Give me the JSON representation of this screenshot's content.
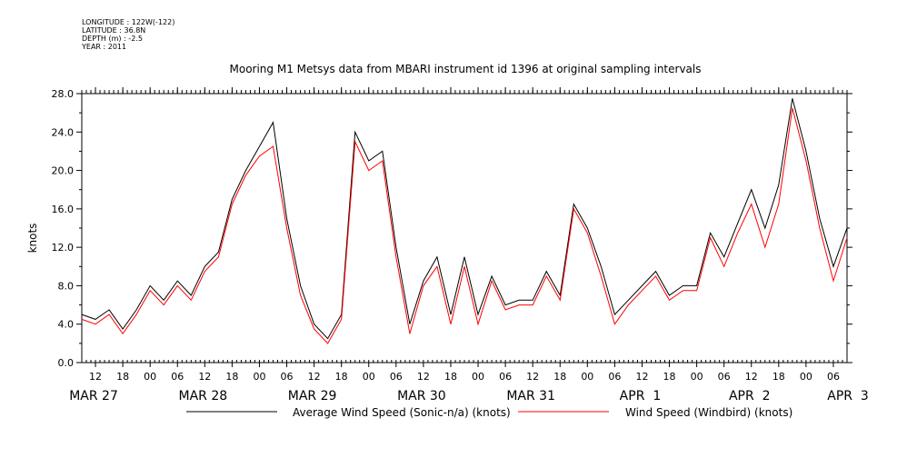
{
  "header": {
    "longitude": "LONGITUDE : 122W(-122)",
    "latitude": "LATITUDE : 36.8N",
    "depth": "DEPTH (m) : -2.5",
    "year": "YEAR : 2011"
  },
  "chart_data": {
    "type": "line",
    "title": "Mooring M1 Metsys data from MBARI instrument id 1396 at original sampling intervals",
    "xlabel": "",
    "ylabel": "knots",
    "ylim": [
      0,
      28.0
    ],
    "xlim": [
      "2011-03-27T09:00",
      "2011-04-03T09:00"
    ],
    "y_ticks": [
      "0.0",
      "4.0",
      "8.0",
      "12.0",
      "16.0",
      "20.0",
      "24.0",
      "28.0"
    ],
    "hour_ticks": [
      "12",
      "18",
      "00",
      "06",
      "12",
      "18",
      "00",
      "06",
      "12",
      "18",
      "00",
      "06",
      "12",
      "18",
      "00",
      "06",
      "12",
      "18",
      "00",
      "06",
      "12",
      "18",
      "00",
      "06",
      "12",
      "18",
      "00",
      "06",
      "12",
      "18",
      "00",
      "06"
    ],
    "date_labels": [
      "MAR 27",
      "MAR 28",
      "MAR 29",
      "MAR 30",
      "MAR 31",
      "APR  1",
      "APR  2",
      "APR  3"
    ],
    "grid": false,
    "legend_position": "bottom",
    "series": [
      {
        "name": "Average Wind Speed (Sonic-n/a) (knots)",
        "color": "#000000",
        "x": [
          "2011-03-27T09:00",
          "2011-03-27T12:00",
          "2011-03-27T15:00",
          "2011-03-27T18:00",
          "2011-03-27T21:00",
          "2011-03-28T00:00",
          "2011-03-28T03:00",
          "2011-03-28T06:00",
          "2011-03-28T09:00",
          "2011-03-28T12:00",
          "2011-03-28T15:00",
          "2011-03-28T18:00",
          "2011-03-28T21:00",
          "2011-03-29T00:00",
          "2011-03-29T03:00",
          "2011-03-29T06:00",
          "2011-03-29T09:00",
          "2011-03-29T12:00",
          "2011-03-29T15:00",
          "2011-03-29T18:00",
          "2011-03-29T21:00",
          "2011-03-30T00:00",
          "2011-03-30T03:00",
          "2011-03-30T06:00",
          "2011-03-30T09:00",
          "2011-03-30T12:00",
          "2011-03-30T15:00",
          "2011-03-30T18:00",
          "2011-03-30T21:00",
          "2011-03-31T00:00",
          "2011-03-31T03:00",
          "2011-03-31T06:00",
          "2011-03-31T09:00",
          "2011-03-31T12:00",
          "2011-03-31T15:00",
          "2011-03-31T18:00",
          "2011-03-31T21:00",
          "2011-04-01T00:00",
          "2011-04-01T03:00",
          "2011-04-01T06:00",
          "2011-04-01T09:00",
          "2011-04-01T12:00",
          "2011-04-01T15:00",
          "2011-04-01T18:00",
          "2011-04-01T21:00",
          "2011-04-02T00:00",
          "2011-04-02T03:00",
          "2011-04-02T06:00",
          "2011-04-02T09:00",
          "2011-04-02T12:00",
          "2011-04-02T15:00",
          "2011-04-02T18:00",
          "2011-04-02T21:00",
          "2011-04-03T00:00",
          "2011-04-03T03:00",
          "2011-04-03T06:00",
          "2011-04-03T09:00"
        ],
        "values": [
          5.0,
          4.5,
          5.5,
          3.5,
          5.5,
          8.0,
          6.5,
          8.5,
          7.0,
          10.0,
          11.5,
          17.0,
          20.0,
          22.5,
          25.0,
          15.0,
          8.0,
          4.0,
          2.5,
          5.0,
          24.0,
          21.0,
          22.0,
          12.0,
          4.0,
          8.5,
          11.0,
          5.0,
          11.0,
          5.0,
          9.0,
          6.0,
          6.5,
          6.5,
          9.5,
          7.0,
          16.5,
          14.0,
          10.0,
          5.0,
          6.5,
          8.0,
          9.5,
          7.0,
          8.0,
          8.0,
          13.5,
          11.0,
          14.5,
          18.0,
          14.0,
          18.5,
          27.5,
          22.0,
          15.0,
          10.0,
          14.0
        ]
      },
      {
        "name": "Wind Speed (Windbird) (knots)",
        "color": "#ff0000",
        "x": [
          "2011-03-27T09:00",
          "2011-03-27T12:00",
          "2011-03-27T15:00",
          "2011-03-27T18:00",
          "2011-03-27T21:00",
          "2011-03-28T00:00",
          "2011-03-28T03:00",
          "2011-03-28T06:00",
          "2011-03-28T09:00",
          "2011-03-28T12:00",
          "2011-03-28T15:00",
          "2011-03-28T18:00",
          "2011-03-28T21:00",
          "2011-03-29T00:00",
          "2011-03-29T03:00",
          "2011-03-29T06:00",
          "2011-03-29T09:00",
          "2011-03-29T12:00",
          "2011-03-29T15:00",
          "2011-03-29T18:00",
          "2011-03-29T21:00",
          "2011-03-30T00:00",
          "2011-03-30T03:00",
          "2011-03-30T06:00",
          "2011-03-30T09:00",
          "2011-03-30T12:00",
          "2011-03-30T15:00",
          "2011-03-30T18:00",
          "2011-03-30T21:00",
          "2011-03-31T00:00",
          "2011-03-31T03:00",
          "2011-03-31T06:00",
          "2011-03-31T09:00",
          "2011-03-31T12:00",
          "2011-03-31T15:00",
          "2011-03-31T18:00",
          "2011-03-31T21:00",
          "2011-04-01T00:00",
          "2011-04-01T03:00",
          "2011-04-01T06:00",
          "2011-04-01T09:00",
          "2011-04-01T12:00",
          "2011-04-01T15:00",
          "2011-04-01T18:00",
          "2011-04-01T21:00",
          "2011-04-02T00:00",
          "2011-04-02T03:00",
          "2011-04-02T06:00",
          "2011-04-02T09:00",
          "2011-04-02T12:00",
          "2011-04-02T15:00",
          "2011-04-02T18:00",
          "2011-04-02T21:00",
          "2011-04-03T00:00",
          "2011-04-03T03:00",
          "2011-04-03T06:00",
          "2011-04-03T09:00"
        ],
        "values": [
          4.5,
          4.0,
          5.0,
          3.0,
          5.0,
          7.5,
          6.0,
          8.0,
          6.5,
          9.5,
          11.0,
          16.5,
          19.5,
          21.5,
          22.5,
          14.0,
          7.0,
          3.5,
          2.0,
          4.5,
          23.0,
          20.0,
          21.0,
          11.0,
          3.0,
          8.0,
          10.0,
          4.0,
          10.0,
          4.0,
          8.5,
          5.5,
          6.0,
          6.0,
          9.0,
          6.5,
          16.0,
          13.5,
          9.0,
          4.0,
          6.0,
          7.5,
          9.0,
          6.5,
          7.5,
          7.5,
          13.0,
          10.0,
          13.5,
          16.5,
          12.0,
          16.5,
          26.5,
          21.0,
          14.0,
          8.5,
          13.0
        ]
      }
    ]
  }
}
